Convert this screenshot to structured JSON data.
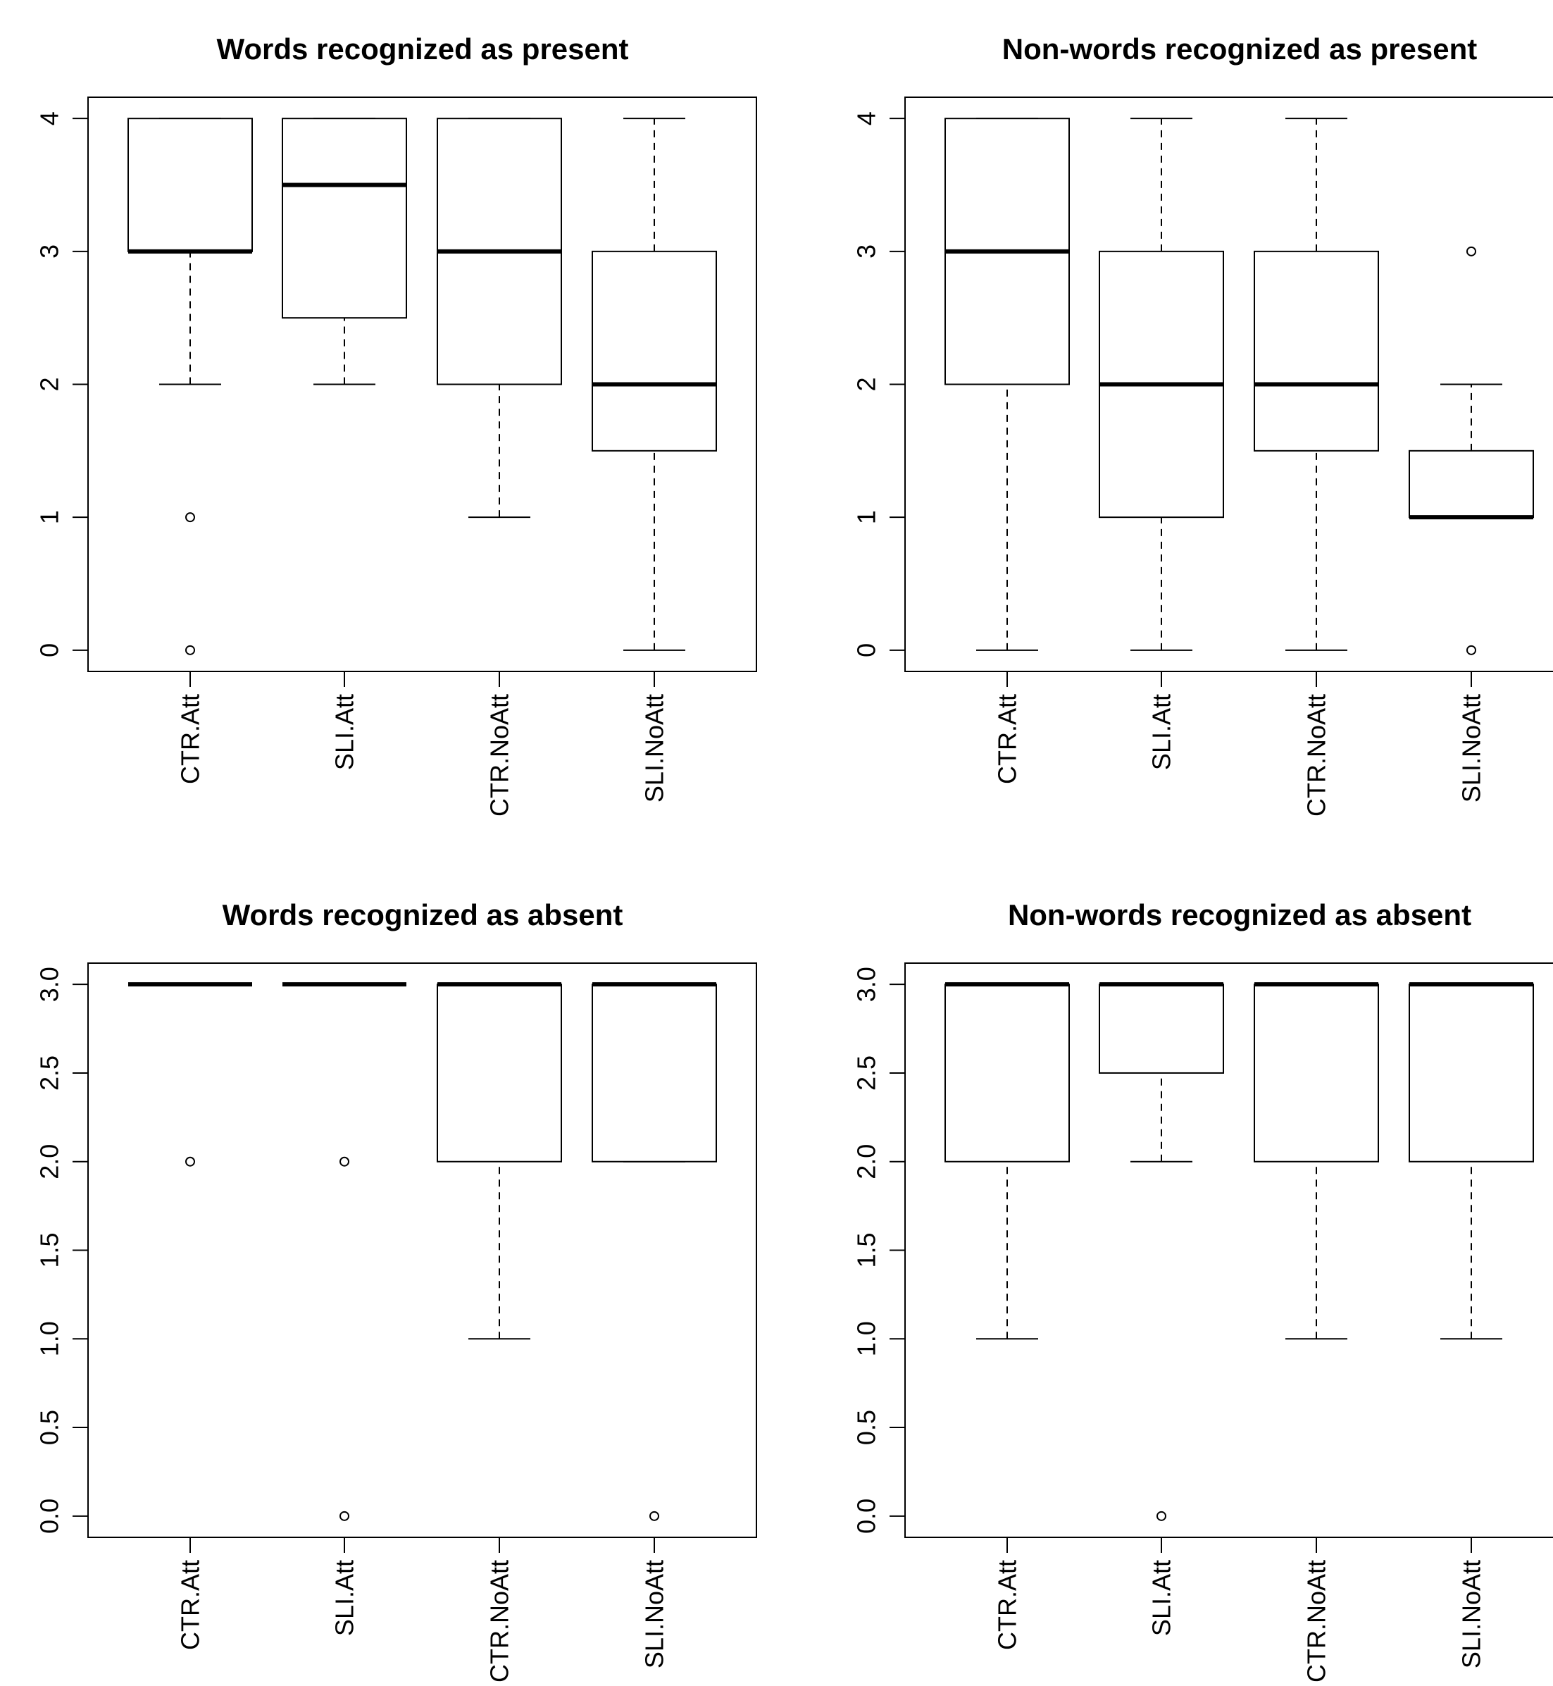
{
  "chart_data": [
    {
      "type": "boxplot",
      "title": "Words recognized as present",
      "categories": [
        "CTR.Att",
        "SLI.Att",
        "CTR.NoAtt",
        "SLI.NoAtt"
      ],
      "yticks": [
        "0",
        "1",
        "2",
        "3",
        "4"
      ],
      "ylim": [
        -0.16,
        4.16
      ],
      "boxes": [
        {
          "category": "CTR.Att",
          "whisker_low": 2,
          "q1": 3,
          "median": 3,
          "q3": 4,
          "whisker_high": 4,
          "outliers": [
            1,
            0
          ]
        },
        {
          "category": "SLI.Att",
          "whisker_low": 2,
          "q1": 2.5,
          "median": 3.5,
          "q3": 4,
          "whisker_high": 4,
          "outliers": []
        },
        {
          "category": "CTR.NoAtt",
          "whisker_low": 1,
          "q1": 2,
          "median": 3,
          "q3": 4,
          "whisker_high": 4,
          "outliers": []
        },
        {
          "category": "SLI.NoAtt",
          "whisker_low": 0,
          "q1": 1.5,
          "median": 2,
          "q3": 3,
          "whisker_high": 4,
          "outliers": []
        }
      ]
    },
    {
      "type": "boxplot",
      "title": "Non-words recognized as present",
      "categories": [
        "CTR.Att",
        "SLI.Att",
        "CTR.NoAtt",
        "SLI.NoAtt"
      ],
      "yticks": [
        "0",
        "1",
        "2",
        "3",
        "4"
      ],
      "ylim": [
        -0.16,
        4.16
      ],
      "boxes": [
        {
          "category": "CTR.Att",
          "whisker_low": 0,
          "q1": 2,
          "median": 3,
          "q3": 4,
          "whisker_high": 4,
          "outliers": []
        },
        {
          "category": "SLI.Att",
          "whisker_low": 0,
          "q1": 1,
          "median": 2,
          "q3": 3,
          "whisker_high": 4,
          "outliers": []
        },
        {
          "category": "CTR.NoAtt",
          "whisker_low": 0,
          "q1": 1.5,
          "median": 2,
          "q3": 3,
          "whisker_high": 4,
          "outliers": []
        },
        {
          "category": "SLI.NoAtt",
          "whisker_low": 1,
          "q1": 1,
          "median": 1,
          "q3": 1.5,
          "whisker_high": 2,
          "outliers": [
            3,
            0
          ]
        }
      ]
    },
    {
      "type": "boxplot",
      "title": "Words recognized as absent",
      "categories": [
        "CTR.Att",
        "SLI.Att",
        "CTR.NoAtt",
        "SLI.NoAtt"
      ],
      "yticks": [
        "0.0",
        "0.5",
        "1.0",
        "1.5",
        "2.0",
        "2.5",
        "3.0"
      ],
      "ylim": [
        -0.12,
        3.12
      ],
      "boxes": [
        {
          "category": "CTR.Att",
          "whisker_low": 3,
          "q1": 3,
          "median": 3,
          "q3": 3,
          "whisker_high": 3,
          "outliers": [
            2
          ]
        },
        {
          "category": "SLI.Att",
          "whisker_low": 3,
          "q1": 3,
          "median": 3,
          "q3": 3,
          "whisker_high": 3,
          "outliers": [
            2,
            0
          ]
        },
        {
          "category": "CTR.NoAtt",
          "whisker_low": 1,
          "q1": 2,
          "median": 3,
          "q3": 3,
          "whisker_high": 3,
          "outliers": []
        },
        {
          "category": "SLI.NoAtt",
          "whisker_low": 2,
          "q1": 2,
          "median": 3,
          "q3": 3,
          "whisker_high": 3,
          "outliers": [
            0
          ]
        }
      ]
    },
    {
      "type": "boxplot",
      "title": "Non-words recognized as absent",
      "categories": [
        "CTR.Att",
        "SLI.Att",
        "CTR.NoAtt",
        "SLI.NoAtt"
      ],
      "yticks": [
        "0.0",
        "0.5",
        "1.0",
        "1.5",
        "2.0",
        "2.5",
        "3.0"
      ],
      "ylim": [
        -0.12,
        3.12
      ],
      "boxes": [
        {
          "category": "CTR.Att",
          "whisker_low": 1,
          "q1": 2,
          "median": 3,
          "q3": 3,
          "whisker_high": 3,
          "outliers": []
        },
        {
          "category": "SLI.Att",
          "whisker_low": 2,
          "q1": 2.5,
          "median": 3,
          "q3": 3,
          "whisker_high": 3,
          "outliers": [
            0
          ]
        },
        {
          "category": "CTR.NoAtt",
          "whisker_low": 1,
          "q1": 2,
          "median": 3,
          "q3": 3,
          "whisker_high": 3,
          "outliers": []
        },
        {
          "category": "SLI.NoAtt",
          "whisker_low": 1,
          "q1": 2,
          "median": 3,
          "q3": 3,
          "whisker_high": 3,
          "outliers": []
        }
      ]
    }
  ]
}
